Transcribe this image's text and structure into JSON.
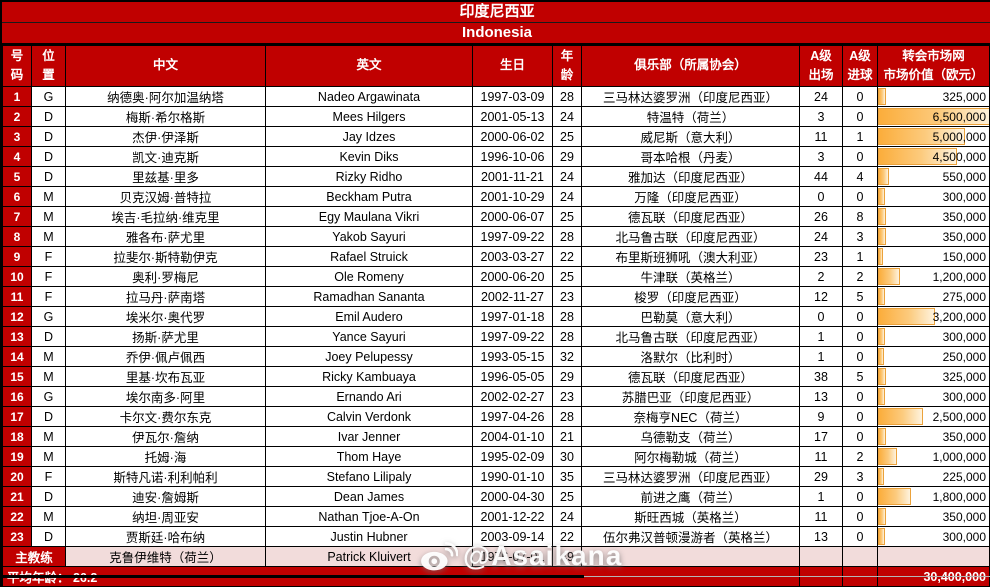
{
  "title_cn": "印度尼西亚",
  "title_en": "Indonesia",
  "columns": [
    {
      "key": "no",
      "label": "号\n码"
    },
    {
      "key": "pos",
      "label": "位\n置"
    },
    {
      "key": "name_cn",
      "label": "中文"
    },
    {
      "key": "name_en",
      "label": "英文"
    },
    {
      "key": "birth",
      "label": "生日"
    },
    {
      "key": "age",
      "label": "年\n龄"
    },
    {
      "key": "club",
      "label": "俱乐部（所属协会）"
    },
    {
      "key": "caps",
      "label": "A级\n出场"
    },
    {
      "key": "goals",
      "label": "A级\n进球"
    },
    {
      "key": "value",
      "label": "转会市场网\n市场价值（欧元）"
    }
  ],
  "value_max": 6500000,
  "players": [
    {
      "no": "1",
      "pos": "G",
      "name_cn": "纳德奥·阿尔加温纳塔",
      "name_en": "Nadeo Argawinata",
      "birth": "1997-03-09",
      "age": "28",
      "club": "三马林达婆罗洲（印度尼西亚）",
      "caps": "24",
      "goals": "0",
      "value": 325000,
      "value_display": "325,000"
    },
    {
      "no": "2",
      "pos": "D",
      "name_cn": "梅斯·希尔格斯",
      "name_en": "Mees Hilgers",
      "birth": "2001-05-13",
      "age": "24",
      "club": "特温特（荷兰）",
      "caps": "3",
      "goals": "0",
      "value": 6500000,
      "value_display": "6,500,000"
    },
    {
      "no": "3",
      "pos": "D",
      "name_cn": "杰伊·伊泽斯",
      "name_en": "Jay Idzes",
      "birth": "2000-06-02",
      "age": "25",
      "club": "威尼斯（意大利）",
      "caps": "11",
      "goals": "1",
      "value": 5000000,
      "value_display": "5,000,000"
    },
    {
      "no": "4",
      "pos": "D",
      "name_cn": "凯文·迪克斯",
      "name_en": "Kevin Diks",
      "birth": "1996-10-06",
      "age": "29",
      "club": "哥本哈根（丹麦）",
      "caps": "3",
      "goals": "0",
      "value": 4500000,
      "value_display": "4,500,000"
    },
    {
      "no": "5",
      "pos": "D",
      "name_cn": "里兹基·里多",
      "name_en": "Rizky Ridho",
      "birth": "2001-11-21",
      "age": "24",
      "club": "雅加达（印度尼西亚）",
      "caps": "44",
      "goals": "4",
      "value": 550000,
      "value_display": "550,000"
    },
    {
      "no": "6",
      "pos": "M",
      "name_cn": "贝克汉姆·普特拉",
      "name_en": "Beckham Putra",
      "birth": "2001-10-29",
      "age": "24",
      "club": "万隆（印度尼西亚）",
      "caps": "0",
      "goals": "0",
      "value": 300000,
      "value_display": "300,000"
    },
    {
      "no": "7",
      "pos": "M",
      "name_cn": "埃吉·毛拉纳·维克里",
      "name_en": "Egy Maulana Vikri",
      "birth": "2000-06-07",
      "age": "25",
      "club": "德瓦联（印度尼西亚）",
      "caps": "26",
      "goals": "8",
      "value": 350000,
      "value_display": "350,000"
    },
    {
      "no": "8",
      "pos": "M",
      "name_cn": "雅各布·萨尤里",
      "name_en": "Yakob Sayuri",
      "birth": "1997-09-22",
      "age": "28",
      "club": "北马鲁古联（印度尼西亚）",
      "caps": "24",
      "goals": "3",
      "value": 350000,
      "value_display": "350,000"
    },
    {
      "no": "9",
      "pos": "F",
      "name_cn": "拉斐尔·斯特勒伊克",
      "name_en": "Rafael Struick",
      "birth": "2003-03-27",
      "age": "22",
      "club": "布里斯班狮吼（澳大利亚）",
      "caps": "23",
      "goals": "1",
      "value": 150000,
      "value_display": "150,000"
    },
    {
      "no": "10",
      "pos": "F",
      "name_cn": "奥利·罗梅尼",
      "name_en": "Ole Romeny",
      "birth": "2000-06-20",
      "age": "25",
      "club": "牛津联（英格兰）",
      "caps": "2",
      "goals": "2",
      "value": 1200000,
      "value_display": "1,200,000"
    },
    {
      "no": "11",
      "pos": "F",
      "name_cn": "拉马丹·萨南塔",
      "name_en": "Ramadhan Sananta",
      "birth": "2002-11-27",
      "age": "23",
      "club": "梭罗（印度尼西亚）",
      "caps": "12",
      "goals": "5",
      "value": 275000,
      "value_display": "275,000"
    },
    {
      "no": "12",
      "pos": "G",
      "name_cn": "埃米尔·奥代罗",
      "name_en": "Emil Audero",
      "birth": "1997-01-18",
      "age": "28",
      "club": "巴勒莫（意大利）",
      "caps": "0",
      "goals": "0",
      "value": 3200000,
      "value_display": "3,200,000"
    },
    {
      "no": "13",
      "pos": "D",
      "name_cn": "扬斯·萨尤里",
      "name_en": "Yance Sayuri",
      "birth": "1997-09-22",
      "age": "28",
      "club": "北马鲁古联（印度尼西亚）",
      "caps": "1",
      "goals": "0",
      "value": 300000,
      "value_display": "300,000"
    },
    {
      "no": "14",
      "pos": "M",
      "name_cn": "乔伊·佩卢佩西",
      "name_en": "Joey Pelupessy",
      "birth": "1993-05-15",
      "age": "32",
      "club": "洛默尔（比利时）",
      "caps": "1",
      "goals": "0",
      "value": 250000,
      "value_display": "250,000"
    },
    {
      "no": "15",
      "pos": "M",
      "name_cn": "里基·坎布瓦亚",
      "name_en": "Ricky Kambuaya",
      "birth": "1996-05-05",
      "age": "29",
      "club": "德瓦联（印度尼西亚）",
      "caps": "38",
      "goals": "5",
      "value": 325000,
      "value_display": "325,000"
    },
    {
      "no": "16",
      "pos": "G",
      "name_cn": "埃尔南多·阿里",
      "name_en": "Ernando Ari",
      "birth": "2002-02-27",
      "age": "23",
      "club": "苏腊巴亚（印度尼西亚）",
      "caps": "13",
      "goals": "0",
      "value": 300000,
      "value_display": "300,000"
    },
    {
      "no": "17",
      "pos": "D",
      "name_cn": "卡尔文·费尔东克",
      "name_en": "Calvin Verdonk",
      "birth": "1997-04-26",
      "age": "28",
      "club": "奈梅亨NEC（荷兰）",
      "caps": "9",
      "goals": "0",
      "value": 2500000,
      "value_display": "2,500,000"
    },
    {
      "no": "18",
      "pos": "M",
      "name_cn": "伊瓦尔·詹纳",
      "name_en": "Ivar Jenner",
      "birth": "2004-01-10",
      "age": "21",
      "club": "乌德勒支（荷兰）",
      "caps": "17",
      "goals": "0",
      "value": 350000,
      "value_display": "350,000"
    },
    {
      "no": "19",
      "pos": "M",
      "name_cn": "托姆·海",
      "name_en": "Thom Haye",
      "birth": "1995-02-09",
      "age": "30",
      "club": "阿尔梅勒城（荷兰）",
      "caps": "11",
      "goals": "2",
      "value": 1000000,
      "value_display": "1,000,000"
    },
    {
      "no": "20",
      "pos": "F",
      "name_cn": "斯特凡诺·利利帕利",
      "name_en": "Stefano Lilipaly",
      "birth": "1990-01-10",
      "age": "35",
      "club": "三马林达婆罗洲（印度尼西亚）",
      "caps": "29",
      "goals": "3",
      "value": 225000,
      "value_display": "225,000"
    },
    {
      "no": "21",
      "pos": "D",
      "name_cn": "迪安·詹姆斯",
      "name_en": "Dean James",
      "birth": "2000-04-30",
      "age": "25",
      "club": "前进之鹰（荷兰）",
      "caps": "1",
      "goals": "0",
      "value": 1800000,
      "value_display": "1,800,000"
    },
    {
      "no": "22",
      "pos": "M",
      "name_cn": "纳坦·周亚安",
      "name_en": "Nathan Tjoe-A-On",
      "birth": "2001-12-22",
      "age": "24",
      "club": "斯旺西城（英格兰）",
      "caps": "11",
      "goals": "0",
      "value": 350000,
      "value_display": "350,000"
    },
    {
      "no": "23",
      "pos": "D",
      "name_cn": "贾斯廷·哈布纳",
      "name_en": "Justin Hubner",
      "birth": "2003-09-14",
      "age": "22",
      "club": "伍尔弗汉普顿漫游者（英格兰）",
      "caps": "13",
      "goals": "0",
      "value": 300000,
      "value_display": "300,000"
    }
  ],
  "coach": {
    "label": "主教练",
    "name_cn": "克鲁伊维特（荷兰）",
    "name_en": "Patrick Kluivert",
    "birth": "1976-07-01",
    "age": "49"
  },
  "footer": {
    "avg_label": "平均年龄： 26.2",
    "total_value": "30,400,000"
  },
  "watermark": {
    "text": "@Asaikana",
    "icon": "weibo-logo"
  },
  "colors": {
    "header_red": "#C00000",
    "coach_pink": "#F2DCDB",
    "bar_orange": "#FBAD3B",
    "bar_border": "#EBA23B"
  }
}
